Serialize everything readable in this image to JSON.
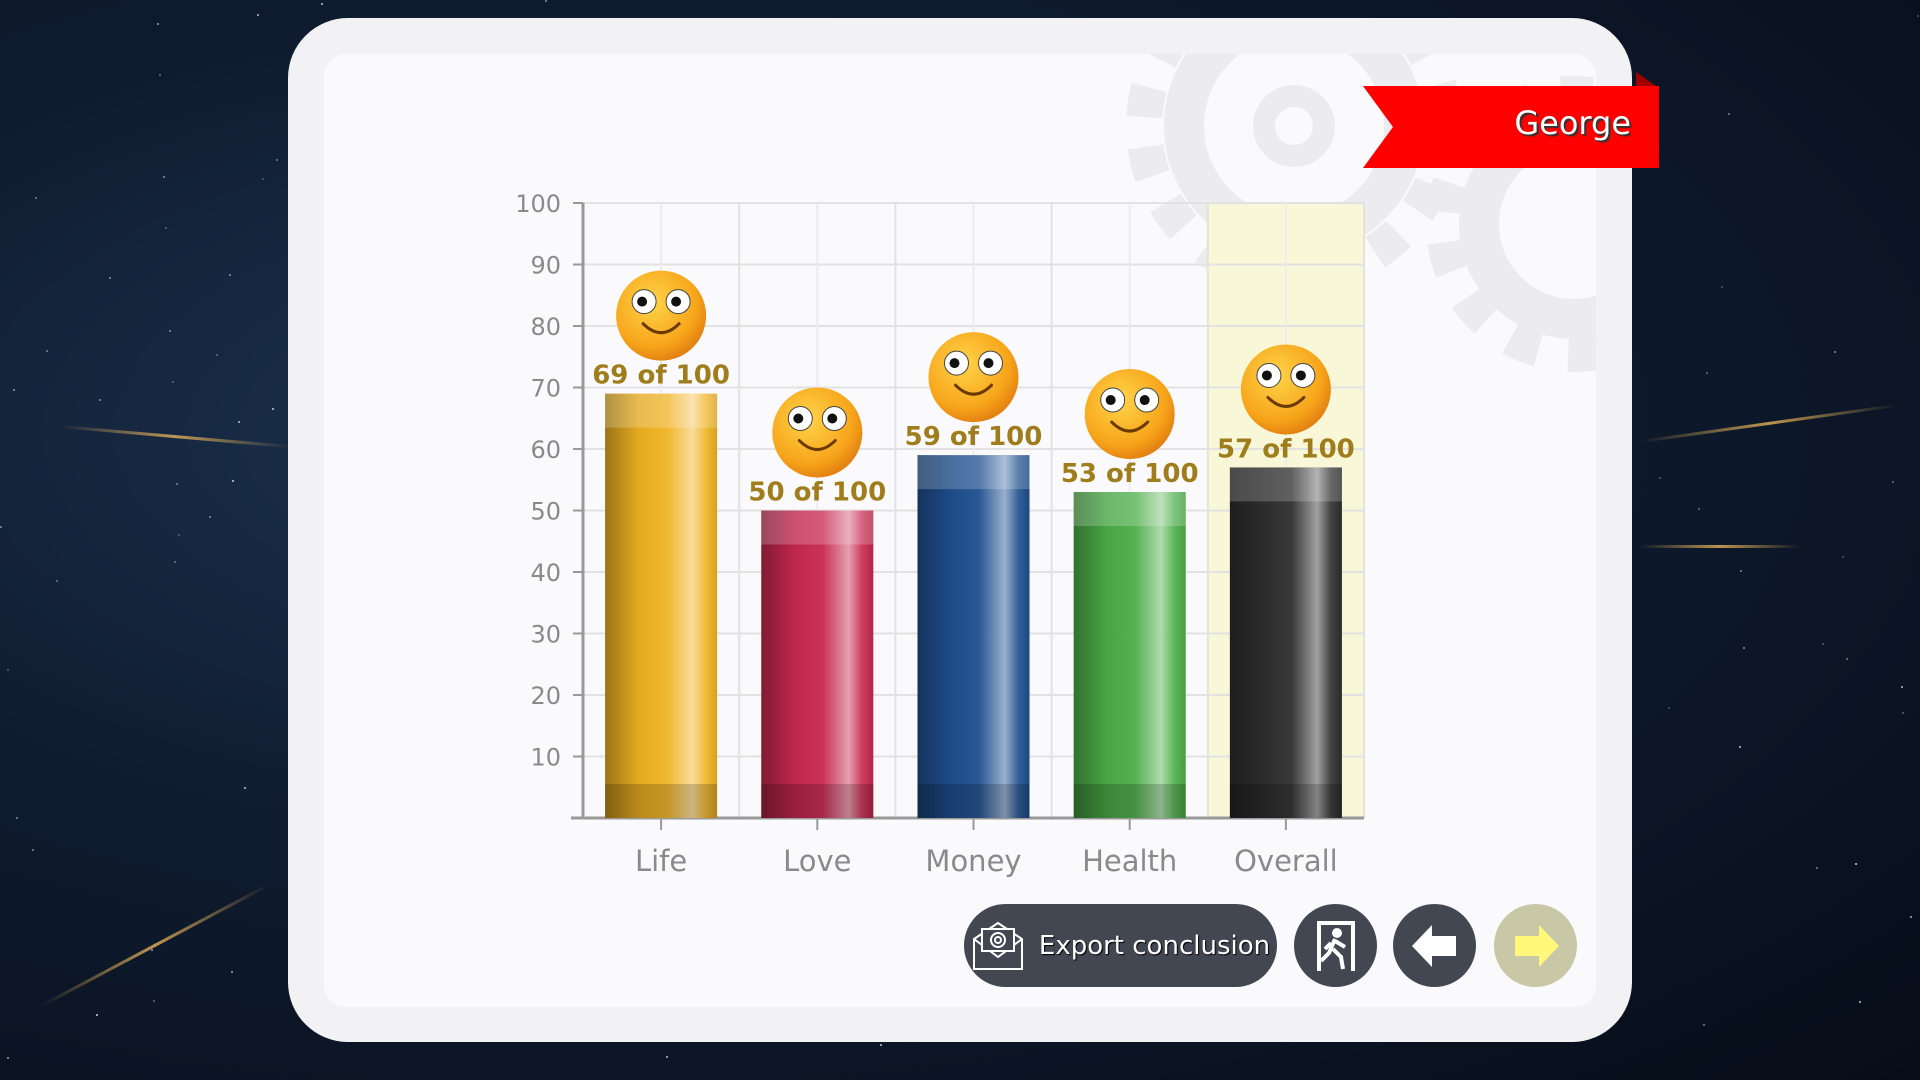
{
  "user_name": "George",
  "chart_data": {
    "type": "bar",
    "categories": [
      "Life",
      "Love",
      "Money",
      "Health",
      "Overall"
    ],
    "values": [
      69,
      50,
      59,
      53,
      57
    ],
    "data_labels": [
      "69 of 100",
      "50 of 100",
      "59 of 100",
      "53 of 100",
      "57 of 100"
    ],
    "colors": [
      "#f0b323",
      "#c8284f",
      "#1f4f8f",
      "#4cae48",
      "#2e2e2e"
    ],
    "highlighted_category": "Overall",
    "highlight_color": "#f8f8d8",
    "ylim": [
      0,
      100
    ],
    "yticks": [
      "10",
      "20",
      "30",
      "40",
      "50",
      "60",
      "70",
      "80",
      "90",
      "100"
    ],
    "grid": true,
    "marker_icon": "smiley-face-icon"
  },
  "buttons": {
    "export_label": "Export conclusion",
    "export_icon": "email-envelope-icon",
    "exit_icon": "exit-door-icon",
    "back_icon": "arrow-left-icon",
    "next_icon": "arrow-right-icon"
  }
}
